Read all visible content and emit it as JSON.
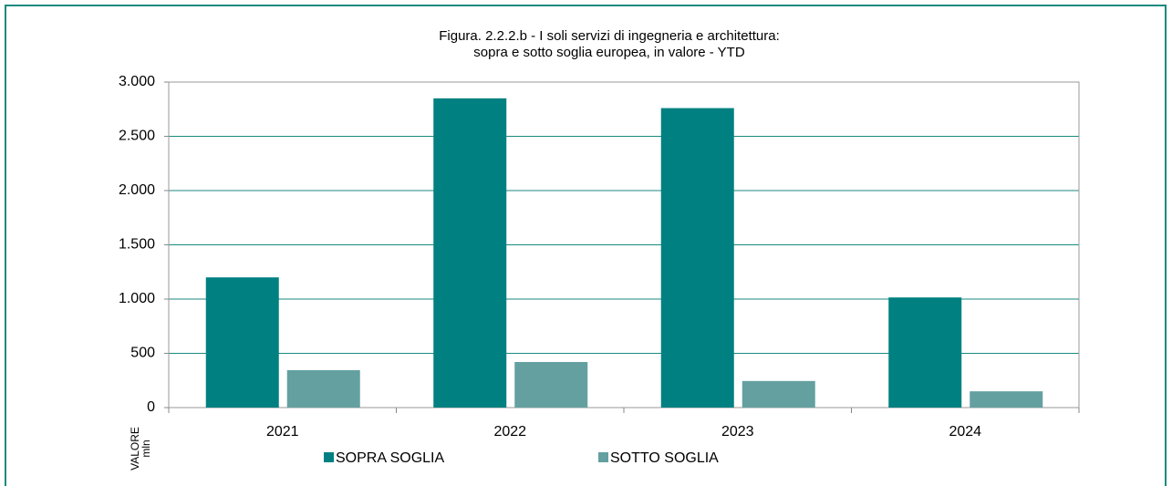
{
  "chart_data": {
    "type": "bar",
    "title": [
      "Figura. 2.2.2.b - I soli servizi di ingegneria e architettura:",
      "sopra e sotto soglia europea, in valore  - YTD"
    ],
    "y_label": [
      "VALORE",
      "mln"
    ],
    "categories": [
      "2021",
      "2022",
      "2023",
      "2024"
    ],
    "series": [
      {
        "name": "SOPRA SOGLIA",
        "color": "#008080",
        "values": [
          1200,
          2850,
          2760,
          1015
        ]
      },
      {
        "name": "SOTTO SOGLIA",
        "color": "#64a0a0",
        "values": [
          345,
          420,
          245,
          150
        ]
      }
    ],
    "ylim": [
      0,
      3000
    ],
    "yticks": [
      0,
      500,
      {
        "value": 1000,
        "label": "1.000"
      },
      {
        "value": 1500,
        "label": "1.500"
      },
      {
        "value": 2000,
        "label": "2.000"
      },
      {
        "value": 2500,
        "label": "2.500"
      },
      {
        "value": 3000,
        "label": "3.000"
      }
    ],
    "grid": true,
    "legend": "bottom"
  }
}
